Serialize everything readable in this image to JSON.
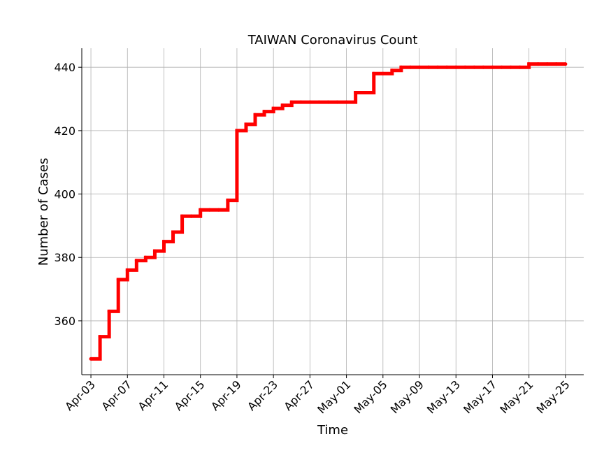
{
  "chart_data": {
    "type": "line",
    "title": "TAIWAN Coronavirus Count",
    "xlabel": "Time",
    "ylabel": "Number of Cases",
    "x_ticks": [
      "Apr-03",
      "Apr-07",
      "Apr-11",
      "Apr-15",
      "Apr-19",
      "Apr-23",
      "Apr-27",
      "May-01",
      "May-05",
      "May-09",
      "May-13",
      "May-17",
      "May-21",
      "May-25"
    ],
    "y_ticks": [
      360,
      380,
      400,
      420,
      440
    ],
    "xlim": [
      "2020-04-02",
      "2020-05-27"
    ],
    "ylim": [
      343,
      446
    ],
    "grid": true,
    "line_color": "#ff0000",
    "series": [
      {
        "points": [
          [
            "2020-04-03",
            348
          ],
          [
            "2020-04-04",
            355
          ],
          [
            "2020-04-05",
            363
          ],
          [
            "2020-04-06",
            373
          ],
          [
            "2020-04-07",
            376
          ],
          [
            "2020-04-08",
            379
          ],
          [
            "2020-04-09",
            380
          ],
          [
            "2020-04-10",
            382
          ],
          [
            "2020-04-11",
            385
          ],
          [
            "2020-04-12",
            388
          ],
          [
            "2020-04-13",
            393
          ],
          [
            "2020-04-14",
            393
          ],
          [
            "2020-04-15",
            395
          ],
          [
            "2020-04-16",
            395
          ],
          [
            "2020-04-17",
            395
          ],
          [
            "2020-04-18",
            398
          ],
          [
            "2020-04-19",
            420
          ],
          [
            "2020-04-20",
            422
          ],
          [
            "2020-04-21",
            425
          ],
          [
            "2020-04-22",
            426
          ],
          [
            "2020-04-23",
            427
          ],
          [
            "2020-04-24",
            428
          ],
          [
            "2020-04-25",
            429
          ],
          [
            "2020-04-26",
            429
          ],
          [
            "2020-04-27",
            429
          ],
          [
            "2020-04-28",
            429
          ],
          [
            "2020-04-29",
            429
          ],
          [
            "2020-04-30",
            429
          ],
          [
            "2020-05-01",
            429
          ],
          [
            "2020-05-02",
            432
          ],
          [
            "2020-05-03",
            432
          ],
          [
            "2020-05-04",
            438
          ],
          [
            "2020-05-05",
            438
          ],
          [
            "2020-05-06",
            439
          ],
          [
            "2020-05-07",
            440
          ],
          [
            "2020-05-08",
            440
          ],
          [
            "2020-05-09",
            440
          ],
          [
            "2020-05-10",
            440
          ],
          [
            "2020-05-11",
            440
          ],
          [
            "2020-05-12",
            440
          ],
          [
            "2020-05-13",
            440
          ],
          [
            "2020-05-14",
            440
          ],
          [
            "2020-05-15",
            440
          ],
          [
            "2020-05-16",
            440
          ],
          [
            "2020-05-17",
            440
          ],
          [
            "2020-05-18",
            440
          ],
          [
            "2020-05-19",
            440
          ],
          [
            "2020-05-20",
            440
          ],
          [
            "2020-05-21",
            441
          ],
          [
            "2020-05-22",
            441
          ],
          [
            "2020-05-23",
            441
          ],
          [
            "2020-05-24",
            441
          ],
          [
            "2020-05-25",
            441
          ]
        ]
      }
    ]
  }
}
